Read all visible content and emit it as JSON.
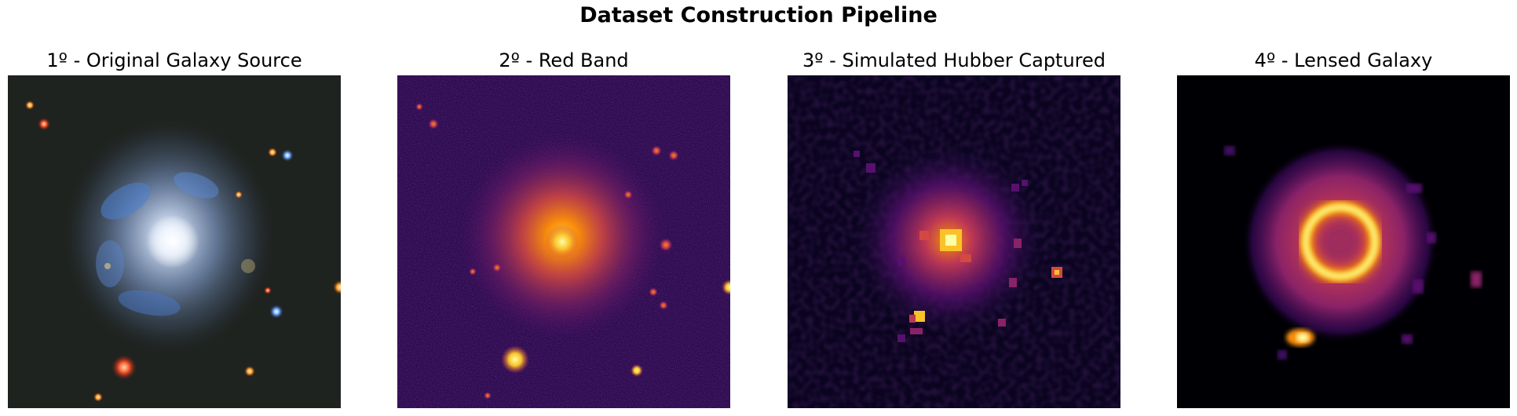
{
  "figure": {
    "title": "Dataset Construction Pipeline"
  },
  "panels": [
    {
      "title": "1º - Original Galaxy Source",
      "colormap": "rgb"
    },
    {
      "title": "2º - Red Band",
      "colormap": "inferno"
    },
    {
      "title": "3º - Simulated Hubber Captured",
      "colormap": "inferno"
    },
    {
      "title": "4º - Lensed Galaxy",
      "colormap": "inferno"
    }
  ],
  "colors": {
    "background": "#ffffff",
    "inferno_dark": "#0b0420",
    "inferno_purple": "#57106e",
    "inferno_orange": "#f98e09",
    "inferno_yellow": "#fcffa4"
  }
}
